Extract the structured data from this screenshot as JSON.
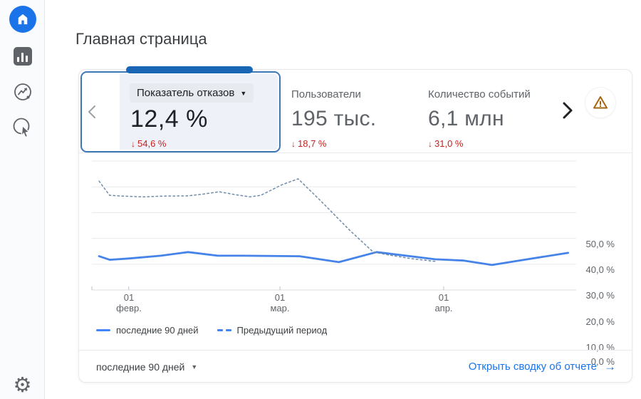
{
  "page": {
    "title": "Главная страница"
  },
  "sidebar": {
    "icons": [
      "home",
      "reports",
      "explore",
      "advertising",
      "settings"
    ]
  },
  "icons": {
    "caret_down": "▼",
    "down_arrow": "↓",
    "arrow_right": "→",
    "gear": "⚙",
    "warning": "warning-triangle",
    "chevron_left": "‹",
    "chevron_right": "›"
  },
  "metric_carousel": {
    "selected": {
      "label": "Показатель отказов",
      "value": "12,4 %",
      "delta": "54,6 %",
      "delta_direction": "down"
    },
    "metrics": [
      {
        "label": "Пользователи",
        "value": "195 тыс.",
        "delta": "18,7 %",
        "delta_direction": "down"
      },
      {
        "label": "Количество событий",
        "value": "6,1 млн",
        "delta": "31,0 %",
        "delta_direction": "down"
      }
    ]
  },
  "chart_data": {
    "type": "line",
    "metric": "Показатель отказов",
    "ylim": [
      0,
      50
    ],
    "yticks": [
      "50,0 %",
      "40,0 %",
      "30,0 %",
      "20,0 %",
      "10,0 %",
      "0,0 %"
    ],
    "x_axis_labels": [
      {
        "line1": "01",
        "line2": "февр.",
        "pos": 7.7
      },
      {
        "line1": "01",
        "line2": "мар.",
        "pos": 39.3
      },
      {
        "line1": "01",
        "line2": "апр.",
        "pos": 73.5
      }
    ],
    "grid": "horizontal",
    "legend_position": "bottom-left",
    "series": [
      {
        "name": "последние 90 дней",
        "style": "solid",
        "color": "#4683e8",
        "points": [
          [
            1.5,
            13.1
          ],
          [
            3.7,
            11.7
          ],
          [
            7.7,
            12.2
          ],
          [
            14.4,
            13.3
          ],
          [
            20.1,
            14.7
          ],
          [
            26.3,
            13.3
          ],
          [
            31.5,
            13.3
          ],
          [
            43.4,
            13.1
          ],
          [
            51.6,
            10.8
          ],
          [
            59.5,
            14.7
          ],
          [
            71.7,
            11.9
          ],
          [
            77.7,
            11.4
          ],
          [
            83.6,
            9.7
          ],
          [
            91.0,
            11.9
          ],
          [
            99.5,
            14.4
          ]
        ]
      },
      {
        "name": "Предыдущий период",
        "style": "dashed",
        "color": "#6f8ba8",
        "points": [
          [
            1.5,
            42.2
          ],
          [
            2.5,
            39.7
          ],
          [
            3.7,
            36.7
          ],
          [
            6.3,
            36.4
          ],
          [
            10.7,
            36.1
          ],
          [
            15.2,
            36.4
          ],
          [
            20.1,
            36.5
          ],
          [
            23.4,
            37.2
          ],
          [
            26.6,
            38.1
          ],
          [
            30.1,
            36.9
          ],
          [
            33.0,
            36.1
          ],
          [
            35.3,
            36.7
          ],
          [
            39.7,
            40.8
          ],
          [
            43.1,
            43.1
          ],
          [
            47.9,
            34.4
          ],
          [
            53.9,
            23.1
          ],
          [
            58.8,
            14.7
          ],
          [
            62.0,
            13.6
          ],
          [
            66.5,
            12.2
          ],
          [
            71.7,
            11.1
          ]
        ]
      }
    ]
  },
  "legend": {
    "items": [
      {
        "label": "последние 90 дней",
        "style": "solid"
      },
      {
        "label": "Предыдущий период",
        "style": "dashed"
      }
    ]
  },
  "footer": {
    "range_label": "последние 90 дней",
    "link_label": "Открыть сводку об отчете"
  },
  "colors": {
    "accent": "#1a73e8",
    "delta_red": "#c5221f",
    "card_border": "#3d77b5",
    "tab": "#1967b4",
    "line_current": "#4683e8",
    "line_previous": "#6f8ba8",
    "warning": "#a5660f",
    "gridline": "#e8eaed"
  }
}
